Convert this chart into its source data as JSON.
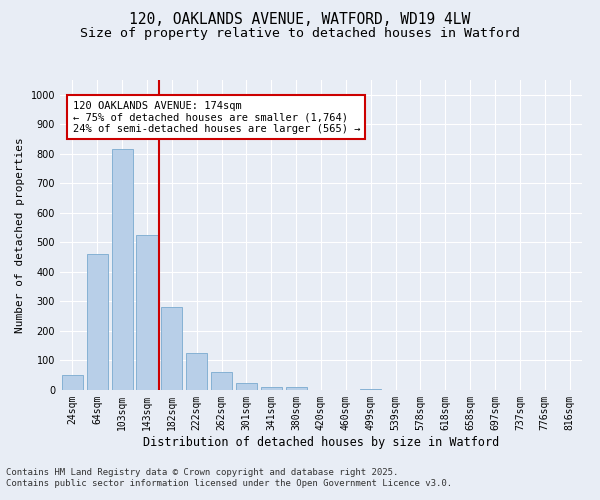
{
  "title": "120, OAKLANDS AVENUE, WATFORD, WD19 4LW",
  "subtitle": "Size of property relative to detached houses in Watford",
  "xlabel": "Distribution of detached houses by size in Watford",
  "ylabel": "Number of detached properties",
  "categories": [
    "24sqm",
    "64sqm",
    "103sqm",
    "143sqm",
    "182sqm",
    "222sqm",
    "262sqm",
    "301sqm",
    "341sqm",
    "380sqm",
    "420sqm",
    "460sqm",
    "499sqm",
    "539sqm",
    "578sqm",
    "618sqm",
    "658sqm",
    "697sqm",
    "737sqm",
    "776sqm",
    "816sqm"
  ],
  "values": [
    50,
    460,
    815,
    525,
    280,
    127,
    60,
    25,
    10,
    10,
    0,
    0,
    5,
    0,
    0,
    0,
    0,
    0,
    0,
    0,
    0
  ],
  "bar_color": "#b8cfe8",
  "bar_edge_color": "#7aaacf",
  "vline_color": "#cc0000",
  "vline_x_index": 4,
  "annotation_text": "120 OAKLANDS AVENUE: 174sqm\n← 75% of detached houses are smaller (1,764)\n24% of semi-detached houses are larger (565) →",
  "annotation_box_color": "#ffffff",
  "annotation_box_edge": "#cc0000",
  "ylim": [
    0,
    1050
  ],
  "yticks": [
    0,
    100,
    200,
    300,
    400,
    500,
    600,
    700,
    800,
    900,
    1000
  ],
  "background_color": "#e8edf5",
  "grid_color": "#ffffff",
  "footer": "Contains HM Land Registry data © Crown copyright and database right 2025.\nContains public sector information licensed under the Open Government Licence v3.0.",
  "title_fontsize": 10.5,
  "subtitle_fontsize": 9.5,
  "xlabel_fontsize": 8.5,
  "ylabel_fontsize": 8,
  "tick_fontsize": 7,
  "annotation_fontsize": 7.5,
  "footer_fontsize": 6.5
}
